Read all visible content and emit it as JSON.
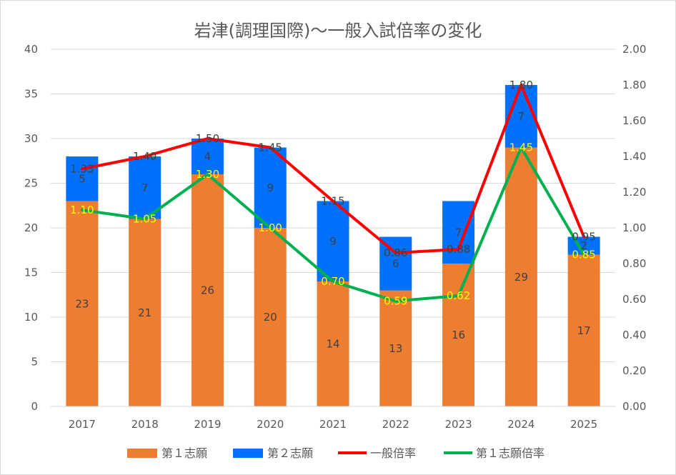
{
  "chart_data": {
    "type": "bar",
    "title": "岩津(調理国際)〜一般入試倍率の変化",
    "categories": [
      "2017",
      "2018",
      "2019",
      "2020",
      "2021",
      "2022",
      "2023",
      "2024",
      "2025"
    ],
    "bar_series": [
      {
        "name": "第１志願",
        "values": [
          23,
          21,
          26,
          20,
          14,
          13,
          16,
          29,
          17
        ],
        "color": "#ed7d31"
      },
      {
        "name": "第２志願",
        "values": [
          5,
          7,
          4,
          9,
          9,
          6,
          7,
          7,
          2
        ],
        "color": "#0070ff"
      }
    ],
    "line_series": [
      {
        "name": "一般倍率",
        "values": [
          1.33,
          1.4,
          1.5,
          1.45,
          1.15,
          0.86,
          0.88,
          1.8,
          0.95
        ],
        "labels": [
          "1.33",
          "1.40",
          "1.50",
          "1.45",
          "1.15",
          "0.86",
          "0.88",
          "1.80",
          "0.95"
        ],
        "color": "#ff0000"
      },
      {
        "name": "第１志願倍率",
        "values": [
          1.1,
          1.05,
          1.3,
          1.0,
          0.7,
          0.59,
          0.62,
          1.45,
          0.85
        ],
        "labels": [
          "1.10",
          "1.05",
          "1.30",
          "1.00",
          "0.70",
          "0.59",
          "0.62",
          "1.45",
          "0.85"
        ],
        "color": "#00b050"
      }
    ],
    "y_left": {
      "min": 0,
      "max": 40,
      "ticks": [
        "0",
        "5",
        "10",
        "15",
        "20",
        "25",
        "30",
        "35",
        "40"
      ]
    },
    "y_right": {
      "min": 0,
      "max": 2,
      "ticks": [
        "0.00",
        "0.20",
        "0.40",
        "0.60",
        "0.80",
        "1.00",
        "1.20",
        "1.40",
        "1.60",
        "1.80",
        "2.00"
      ]
    },
    "grid": true,
    "legend_position": "bottom"
  }
}
